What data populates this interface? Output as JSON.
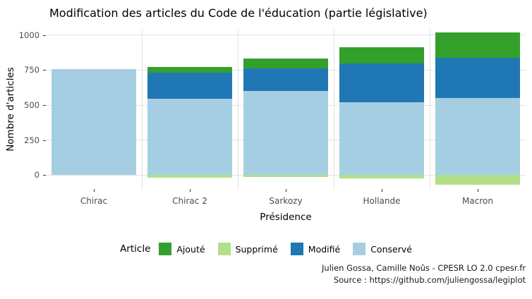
{
  "chart_data": {
    "type": "bar",
    "stacked": true,
    "title": "Modification des articles du Code de l'éducation (partie législative)",
    "xlabel": "Présidence",
    "ylabel": "Nombre d'articles",
    "categories": [
      "Chirac",
      "Chirac 2",
      "Sarkozy",
      "Hollande",
      "Macron"
    ],
    "series": [
      {
        "name": "Ajouté",
        "color": "#33a02c",
        "values": [
          0,
          45,
          75,
          115,
          180
        ]
      },
      {
        "name": "Supprimé",
        "color": "#b2df8a",
        "values": [
          0,
          -20,
          -15,
          -25,
          -70
        ]
      },
      {
        "name": "Modifié",
        "color": "#1f78b4",
        "values": [
          0,
          185,
          160,
          280,
          290
        ]
      },
      {
        "name": "Conservé",
        "color": "#a6cee3",
        "values": [
          755,
          545,
          600,
          520,
          550
        ]
      }
    ],
    "stack_order": [
      "Conservé",
      "Modifié",
      "Ajouté",
      "Supprimé"
    ],
    "yticks": [
      0,
      250,
      500,
      750,
      1000
    ],
    "ylim": [
      -100,
      1050
    ],
    "grid": true,
    "legend_title": "Article",
    "legend_position": "bottom"
  },
  "caption": {
    "line1": "Julien Gossa, Camille Noûs - CPESR LO 2.0 cpesr.fr",
    "line2": "Source : https://github.com/juliengossa/legiplot"
  }
}
